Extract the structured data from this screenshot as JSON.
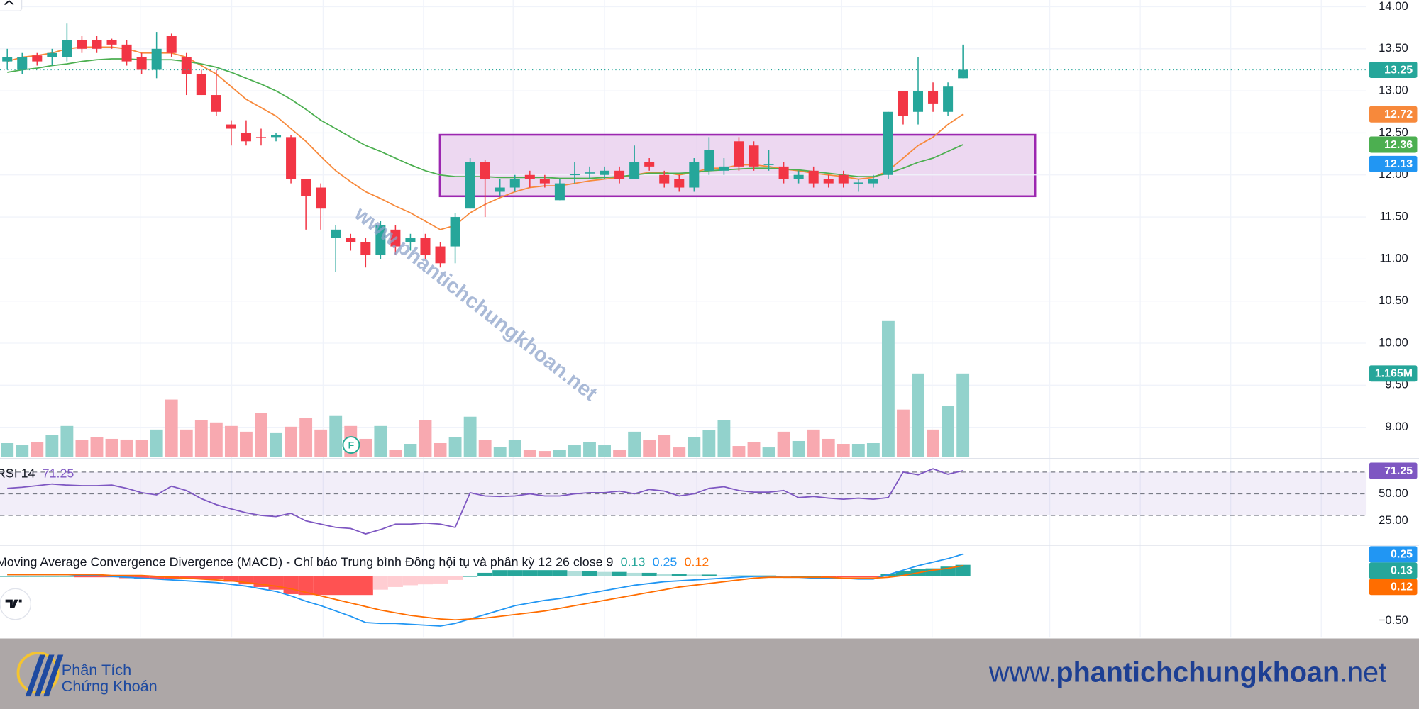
{
  "chart_data": {
    "type": "candlestick",
    "up_color": "#26a69a",
    "down_color": "#f23645",
    "open": [
      13.35,
      13.25,
      13.42,
      13.4,
      13.4,
      13.6,
      13.6,
      13.6,
      13.55,
      13.4,
      13.25,
      13.65,
      13.4,
      13.2,
      12.95,
      12.6,
      12.5,
      12.45,
      12.45,
      12.45,
      11.95,
      11.85,
      11.25,
      11.25,
      11.2,
      11.05,
      11.35,
      11.2,
      11.25,
      11.15,
      11.15,
      11.6,
      12.15,
      11.8,
      11.85,
      12.0,
      11.95,
      11.7,
      12.0,
      12.02,
      12.0,
      12.05,
      11.95,
      12.15,
      12.0,
      11.95,
      11.85,
      12.05,
      12.05,
      12.4,
      12.35,
      12.12,
      12.1,
      11.95,
      12.05,
      11.95,
      12.0,
      11.9,
      11.9,
      12.0,
      13.0,
      12.75,
      13.0,
      12.75,
      13.15
    ],
    "high": [
      13.5,
      13.45,
      13.45,
      13.5,
      13.8,
      13.65,
      13.65,
      13.62,
      13.6,
      13.45,
      13.7,
      13.68,
      13.45,
      13.25,
      13.25,
      12.65,
      12.65,
      12.55,
      12.5,
      12.47,
      11.95,
      11.9,
      11.4,
      11.3,
      11.25,
      11.45,
      11.4,
      11.3,
      11.3,
      11.2,
      11.55,
      12.2,
      12.18,
      11.95,
      12.0,
      12.05,
      12.0,
      11.95,
      12.15,
      12.1,
      12.1,
      12.1,
      12.35,
      12.2,
      12.05,
      12.0,
      12.2,
      12.45,
      12.2,
      12.45,
      12.4,
      12.3,
      12.15,
      12.05,
      12.1,
      12.0,
      12.05,
      11.95,
      12.0,
      12.75,
      13.0,
      13.4,
      13.1,
      13.1,
      13.55
    ],
    "low": [
      13.25,
      13.2,
      13.3,
      13.3,
      13.35,
      13.45,
      13.45,
      13.5,
      13.3,
      13.2,
      13.15,
      13.4,
      12.95,
      12.95,
      12.7,
      12.35,
      12.35,
      12.35,
      12.4,
      11.9,
      11.35,
      11.35,
      10.85,
      11.1,
      10.9,
      11.0,
      11.05,
      11.1,
      11.0,
      10.9,
      10.95,
      11.6,
      11.5,
      11.75,
      11.8,
      11.85,
      11.85,
      11.7,
      11.9,
      11.95,
      11.95,
      11.9,
      11.95,
      12.05,
      11.85,
      11.8,
      11.8,
      12.0,
      12.0,
      12.05,
      12.05,
      12.05,
      11.9,
      11.9,
      11.85,
      11.85,
      11.85,
      11.8,
      11.85,
      11.95,
      12.6,
      12.6,
      12.75,
      12.7,
      13.15
    ],
    "close": [
      13.4,
      13.4,
      13.35,
      13.45,
      13.6,
      13.5,
      13.5,
      13.55,
      13.35,
      13.25,
      13.5,
      13.45,
      13.2,
      12.95,
      12.75,
      12.55,
      12.4,
      12.44,
      12.47,
      11.95,
      11.75,
      11.6,
      11.35,
      11.2,
      11.05,
      11.4,
      11.15,
      11.25,
      11.05,
      10.95,
      11.5,
      12.15,
      11.95,
      11.85,
      11.95,
      11.95,
      11.9,
      11.9,
      12.01,
      12.03,
      12.05,
      11.95,
      12.15,
      12.1,
      11.9,
      11.85,
      12.15,
      12.3,
      12.1,
      12.1,
      12.1,
      12.13,
      11.95,
      12.0,
      11.9,
      11.9,
      11.9,
      11.91,
      11.95,
      12.75,
      12.7,
      13.0,
      12.85,
      13.05,
      13.25
    ],
    "ylim": [
      8.65,
      14.08
    ],
    "yticks": [
      {
        "value": 14,
        "label": "14.00"
      },
      {
        "value": 13.5,
        "label": "13.50"
      },
      {
        "value": 13,
        "label": "13.00"
      },
      {
        "value": 12.5,
        "label": "12.50"
      },
      {
        "value": 12,
        "label": "12.00"
      },
      {
        "value": 11.5,
        "label": "11.50"
      },
      {
        "value": 11,
        "label": "11.00"
      },
      {
        "value": 10.5,
        "label": "10.50"
      },
      {
        "value": 10,
        "label": "10.00"
      },
      {
        "value": 9.5,
        "label": "9.50"
      },
      {
        "value": 9,
        "label": "9.00"
      }
    ],
    "grid": true,
    "last_price_line": true,
    "series": [
      {
        "color": "#f7893b",
        "values": [
          13.35,
          13.4,
          13.42,
          13.45,
          13.5,
          13.52,
          13.52,
          13.52,
          13.5,
          13.45,
          13.45,
          13.45,
          13.4,
          13.3,
          13.2,
          13.05,
          12.9,
          12.8,
          12.7,
          12.55,
          12.4,
          12.22,
          12.05,
          11.92,
          11.8,
          11.72,
          11.63,
          11.55,
          11.45,
          11.35,
          11.4,
          11.55,
          11.65,
          11.73,
          11.8,
          11.85,
          11.87,
          11.87,
          11.9,
          11.93,
          11.95,
          11.97,
          12.0,
          12.03,
          12.03,
          12.0,
          12.03,
          12.08,
          12.08,
          12.12,
          12.12,
          12.1,
          12.07,
          12.05,
          12.02,
          12.0,
          11.98,
          11.95,
          11.97,
          12.05,
          12.2,
          12.35,
          12.45,
          12.6,
          12.72
        ]
      },
      {
        "color": "#4caf50",
        "values": [
          13.22,
          13.25,
          13.27,
          13.3,
          13.32,
          13.35,
          13.37,
          13.38,
          13.38,
          13.37,
          13.37,
          13.37,
          13.35,
          13.32,
          13.28,
          13.22,
          13.15,
          13.08,
          13.0,
          12.9,
          12.78,
          12.65,
          12.55,
          12.45,
          12.35,
          12.28,
          12.2,
          12.12,
          12.05,
          12.0,
          11.98,
          11.98,
          11.98,
          11.97,
          11.97,
          11.97,
          11.97,
          11.96,
          11.96,
          11.96,
          11.97,
          11.98,
          12.0,
          12.02,
          12.02,
          12.02,
          12.03,
          12.05,
          12.06,
          12.07,
          12.08,
          12.08,
          12.07,
          12.06,
          12.04,
          12.02,
          12.0,
          11.98,
          11.98,
          12.02,
          12.08,
          12.15,
          12.2,
          12.28,
          12.36
        ]
      }
    ],
    "extra_level": {
      "value": 12.13,
      "color": "#2196f3"
    },
    "event_marker": "F",
    "volume": {
      "values": [
        0.19,
        0.16,
        0.2,
        0.3,
        0.43,
        0.23,
        0.27,
        0.25,
        0.24,
        0.23,
        0.38,
        0.8,
        0.38,
        0.51,
        0.48,
        0.43,
        0.35,
        0.61,
        0.33,
        0.42,
        0.54,
        0.38,
        0.57,
        0.43,
        0.25,
        0.43,
        0.1,
        0.18,
        0.51,
        0.19,
        0.27,
        0.56,
        0.23,
        0.14,
        0.23,
        0.1,
        0.08,
        0.1,
        0.16,
        0.2,
        0.16,
        0.1,
        0.35,
        0.23,
        0.3,
        0.13,
        0.27,
        0.37,
        0.51,
        0.15,
        0.2,
        0.13,
        0.35,
        0.22,
        0.38,
        0.25,
        0.18,
        0.18,
        0.19,
        1.9,
        0.66,
        1.165,
        0.38,
        0.71,
        1.165
      ],
      "last_label": "1.165M",
      "up_color": "#92d2cc",
      "down_color": "#f8a9b0"
    },
    "rsi": {
      "title": "RSI 14",
      "color": "#7e57c2",
      "values": [
        55,
        56,
        57.5,
        59,
        58,
        57.5,
        57.5,
        58,
        55,
        51,
        49,
        57,
        53,
        45.5,
        40,
        36,
        32.5,
        30,
        29,
        32,
        25,
        22,
        19,
        18,
        13,
        17,
        22,
        22,
        23,
        22,
        19,
        51,
        48,
        47.5,
        48,
        50,
        48,
        48,
        50,
        51,
        51,
        52.5,
        50,
        54,
        52.5,
        48,
        50,
        55,
        56.5,
        53,
        51.5,
        51.5,
        53,
        46.5,
        47.5,
        46,
        45,
        46,
        45,
        46.5,
        70,
        67.5,
        73,
        68,
        71.25
      ],
      "ylim": [
        3.3,
        81.7
      ],
      "yticks": [
        {
          "value": 50,
          "label": "50.00"
        },
        {
          "value": 25,
          "label": "25.00"
        }
      ],
      "levels": [
        70,
        50,
        30
      ]
    },
    "macd": {
      "title": "Moving Average Convergence Divergence (MACD) - Chỉ báo Trung bình Đông hội tụ và phân kỳ 12 26 close 9",
      "macd_color": "#2196f3",
      "signal_color": "#ff6d00",
      "hist_color": "#26a69a",
      "macd": [
        0.02,
        0.02,
        0.02,
        0.02,
        0.02,
        0.01,
        0.01,
        0.0,
        -0.01,
        -0.02,
        -0.03,
        -0.04,
        -0.05,
        -0.06,
        -0.07,
        -0.09,
        -0.11,
        -0.14,
        -0.17,
        -0.22,
        -0.28,
        -0.33,
        -0.39,
        -0.45,
        -0.52,
        -0.53,
        -0.53,
        -0.54,
        -0.55,
        -0.56,
        -0.53,
        -0.48,
        -0.43,
        -0.38,
        -0.33,
        -0.3,
        -0.27,
        -0.25,
        -0.22,
        -0.19,
        -0.16,
        -0.13,
        -0.1,
        -0.08,
        -0.06,
        -0.05,
        -0.04,
        -0.03,
        -0.02,
        -0.01,
        0.0,
        0.0,
        -0.01,
        -0.01,
        -0.02,
        -0.02,
        -0.02,
        -0.03,
        -0.03,
        0.02,
        0.07,
        0.12,
        0.16,
        0.2,
        0.25
      ],
      "signal": [
        0.02,
        0.02,
        0.02,
        0.02,
        0.02,
        0.02,
        0.02,
        0.01,
        0.01,
        0.01,
        0.0,
        -0.01,
        -0.02,
        -0.03,
        -0.04,
        -0.05,
        -0.07,
        -0.09,
        -0.11,
        -0.14,
        -0.18,
        -0.22,
        -0.26,
        -0.3,
        -0.34,
        -0.38,
        -0.41,
        -0.44,
        -0.46,
        -0.48,
        -0.49,
        -0.48,
        -0.47,
        -0.45,
        -0.43,
        -0.41,
        -0.39,
        -0.36,
        -0.33,
        -0.3,
        -0.27,
        -0.24,
        -0.21,
        -0.18,
        -0.15,
        -0.12,
        -0.1,
        -0.08,
        -0.06,
        -0.04,
        -0.02,
        -0.01,
        -0.01,
        -0.01,
        -0.01,
        -0.01,
        -0.02,
        -0.02,
        -0.02,
        -0.01,
        0.01,
        0.04,
        0.07,
        0.09,
        0.12
      ],
      "histogram": [
        0,
        0,
        0,
        0,
        0,
        -0.01,
        -0.01,
        -0.01,
        -0.02,
        -0.03,
        -0.03,
        -0.03,
        -0.03,
        -0.03,
        -0.03,
        -0.06,
        -0.09,
        -0.12,
        -0.15,
        -0.2,
        -0.21,
        -0.21,
        -0.21,
        -0.21,
        -0.21,
        -0.15,
        -0.12,
        -0.1,
        -0.09,
        -0.08,
        -0.04,
        0.0,
        0.04,
        0.07,
        0.07,
        0.07,
        0.07,
        0.07,
        0.06,
        0.06,
        0.05,
        0.05,
        0.04,
        0.04,
        0.03,
        0.03,
        0.02,
        0.02,
        0.01,
        0.01,
        0.01,
        0.01,
        0,
        0,
        0,
        -0.01,
        -0.01,
        -0.01,
        -0.01,
        0.03,
        0.06,
        0.08,
        0.09,
        0.11,
        0.13
      ],
      "ylim": [
        -0.69,
        0.34
      ],
      "yticks": [
        {
          "value": -0.5,
          "label": "−0.50"
        }
      ]
    }
  },
  "watermark": "www.phantichchungkhoan.net",
  "footer": {
    "brand_line1": "Phân Tích",
    "brand_line2": "Chứng Khoán",
    "url_prefix": "www.",
    "url_main": "phantichchungkhoan",
    "url_suffix": ".net"
  }
}
